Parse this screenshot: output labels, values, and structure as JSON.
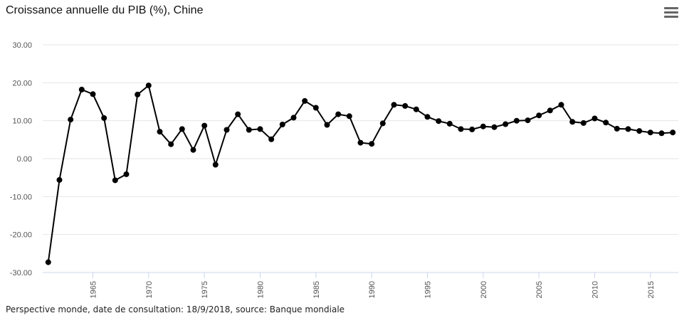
{
  "header": {
    "title": "Croissance annuelle du PIB (%), Chine",
    "menu_icon": "hamburger-menu-icon"
  },
  "footer": {
    "credits": "Perspective monde, date de consultation: 18/9/2018, source: Banque mondiale"
  },
  "colors": {
    "series": "#000000",
    "grid": "#e6e6e6",
    "axis": "#ccd6eb"
  },
  "chart_data": {
    "type": "line",
    "title": "Croissance annuelle du PIB (%), Chine",
    "xlabel": "",
    "ylabel": "",
    "xlim": [
      1960.5,
      2017.5
    ],
    "ylim": [
      -30,
      30
    ],
    "y_ticks": [
      "-30.00",
      "-20.00",
      "-10.00",
      "0.00",
      "10.00",
      "20.00",
      "30.00"
    ],
    "x_ticks": [
      "1965",
      "1970",
      "1975",
      "1980",
      "1985",
      "1990",
      "1995",
      "2000",
      "2005",
      "2010",
      "2015"
    ],
    "grid": true,
    "legend": "none",
    "series": [
      {
        "x": [
          1961,
          1962,
          1963,
          1964,
          1965,
          1966,
          1967,
          1968,
          1969,
          1970,
          1971,
          1972,
          1973,
          1974,
          1975,
          1976,
          1977,
          1978,
          1979,
          1980,
          1981,
          1982,
          1983,
          1984,
          1985,
          1986,
          1987,
          1988,
          1989,
          1990,
          1991,
          1992,
          1993,
          1994,
          1995,
          1996,
          1997,
          1998,
          1999,
          2000,
          2001,
          2002,
          2003,
          2004,
          2005,
          2006,
          2007,
          2008,
          2009,
          2010,
          2011,
          2012,
          2013,
          2014,
          2015,
          2016,
          2017
        ],
        "values": [
          -27.3,
          -5.6,
          10.3,
          18.2,
          17.0,
          10.7,
          -5.7,
          -4.1,
          16.9,
          19.3,
          7.1,
          3.8,
          7.8,
          2.3,
          8.7,
          -1.6,
          7.6,
          11.7,
          7.6,
          7.8,
          5.1,
          9.0,
          10.8,
          15.2,
          13.4,
          8.9,
          11.7,
          11.2,
          4.2,
          3.9,
          9.3,
          14.2,
          13.9,
          13.0,
          11.0,
          9.9,
          9.2,
          7.8,
          7.7,
          8.5,
          8.3,
          9.1,
          10.0,
          10.1,
          11.4,
          12.7,
          14.2,
          9.7,
          9.4,
          10.6,
          9.5,
          7.9,
          7.8,
          7.3,
          6.9,
          6.7,
          6.9
        ]
      }
    ]
  }
}
